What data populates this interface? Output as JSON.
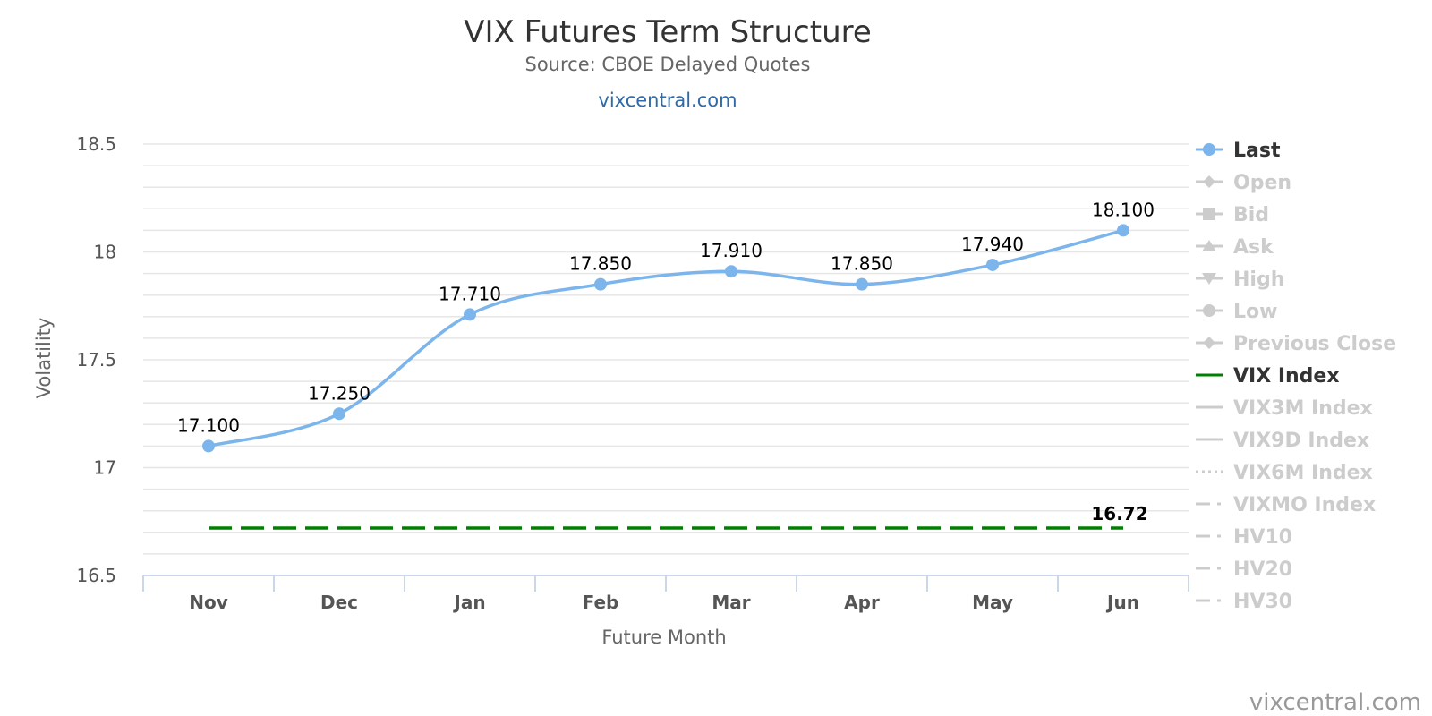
{
  "chart_data": {
    "type": "line",
    "title": "VIX Futures Term Structure",
    "subtitle": "Source: CBOE Delayed Quotes",
    "link_text": "vixcentral.com",
    "xlabel": "Future Month",
    "ylabel": "Volatility",
    "categories": [
      "Nov",
      "Dec",
      "Jan",
      "Feb",
      "Mar",
      "Apr",
      "May",
      "Jun"
    ],
    "ylim": [
      16.5,
      18.5
    ],
    "yticks": [
      16.5,
      17,
      17.5,
      18,
      18.5
    ],
    "ytick_labels": [
      "16.5",
      "17",
      "17.5",
      "18",
      "18.5"
    ],
    "grid": true,
    "series": [
      {
        "name": "Last",
        "color": "#7cb5ec",
        "values": [
          17.1,
          17.25,
          17.71,
          17.85,
          17.91,
          17.85,
          17.94,
          18.1
        ],
        "labels": [
          "17.100",
          "17.250",
          "17.710",
          "17.850",
          "17.910",
          "17.850",
          "17.940",
          "18.100"
        ]
      },
      {
        "name": "VIX Index",
        "color": "#008000",
        "style": "dashed",
        "values": [
          16.72,
          16.72,
          16.72,
          16.72,
          16.72,
          16.72,
          16.72,
          16.72
        ],
        "end_label": "16.72"
      }
    ],
    "legend_position": "right",
    "legend": [
      {
        "name": "Last",
        "active": true,
        "symbol": "circle",
        "color": "#7cb5ec"
      },
      {
        "name": "Open",
        "active": false,
        "symbol": "diamond",
        "color": "#cccccc"
      },
      {
        "name": "Bid",
        "active": false,
        "symbol": "square",
        "color": "#cccccc"
      },
      {
        "name": "Ask",
        "active": false,
        "symbol": "triangle",
        "color": "#cccccc"
      },
      {
        "name": "High",
        "active": false,
        "symbol": "triangle-down",
        "color": "#cccccc"
      },
      {
        "name": "Low",
        "active": false,
        "symbol": "circle",
        "color": "#cccccc"
      },
      {
        "name": "Previous Close",
        "active": false,
        "symbol": "diamond",
        "color": "#cccccc"
      },
      {
        "name": "VIX Index",
        "active": true,
        "symbol": "line",
        "color": "#008000"
      },
      {
        "name": "VIX3M Index",
        "active": false,
        "symbol": "line",
        "color": "#cccccc"
      },
      {
        "name": "VIX9D Index",
        "active": false,
        "symbol": "line",
        "color": "#cccccc"
      },
      {
        "name": "VIX6M Index",
        "active": false,
        "symbol": "dotted",
        "color": "#cccccc"
      },
      {
        "name": "VIXMO Index",
        "active": false,
        "symbol": "dashdot",
        "color": "#cccccc"
      },
      {
        "name": "HV10",
        "active": false,
        "symbol": "dashdot",
        "color": "#cccccc"
      },
      {
        "name": "HV20",
        "active": false,
        "symbol": "dashdot",
        "color": "#cccccc"
      },
      {
        "name": "HV30",
        "active": false,
        "symbol": "dashdot",
        "color": "#cccccc"
      }
    ],
    "credit": "vixcentral.com",
    "colors": {
      "active_legend_text": "#333333",
      "inactive_legend_text": "#cccccc",
      "grid": "#e6e6e6",
      "axis": "#ccd6eb"
    }
  }
}
